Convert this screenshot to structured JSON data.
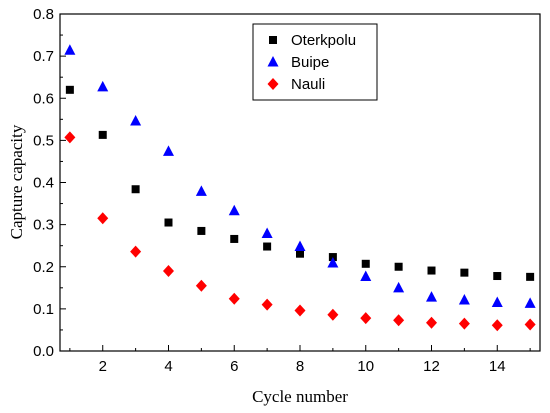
{
  "chart_data": {
    "type": "scatter",
    "title": "",
    "xlabel": "Cycle number",
    "ylabel": "Capture capacity",
    "xlim": [
      0.7,
      15.3
    ],
    "ylim": [
      0,
      0.8
    ],
    "xticks": [
      2,
      4,
      6,
      8,
      10,
      12,
      14
    ],
    "xtick_labels": [
      "2",
      "4",
      "6",
      "8",
      "10",
      "12",
      "14"
    ],
    "yticks": [
      0.0,
      0.1,
      0.2,
      0.3,
      0.4,
      0.5,
      0.6,
      0.7,
      0.8
    ],
    "ytick_labels": [
      "0.0",
      "0.1",
      "0.2",
      "0.3",
      "0.4",
      "0.5",
      "0.6",
      "0.7",
      "0.8"
    ],
    "grid": false,
    "legend_position": "top-center",
    "x": [
      1,
      2,
      3,
      4,
      5,
      6,
      7,
      8,
      9,
      10,
      11,
      12,
      13,
      14,
      15
    ],
    "series": [
      {
        "name": "Oterkpolu",
        "marker": "square",
        "color": "#000000",
        "values": [
          0.62,
          0.513,
          0.384,
          0.305,
          0.285,
          0.266,
          0.248,
          0.231,
          0.223,
          0.207,
          0.2,
          0.191,
          0.186,
          0.178,
          0.176
        ]
      },
      {
        "name": "Buipe",
        "marker": "triangle",
        "color": "#0000ff",
        "values": [
          0.714,
          0.627,
          0.546,
          0.474,
          0.379,
          0.333,
          0.279,
          0.248,
          0.209,
          0.177,
          0.15,
          0.128,
          0.121,
          0.115,
          0.113
        ]
      },
      {
        "name": "Nauli",
        "marker": "diamond",
        "color": "#ff0000",
        "values": [
          0.507,
          0.315,
          0.236,
          0.19,
          0.155,
          0.124,
          0.11,
          0.096,
          0.086,
          0.078,
          0.073,
          0.067,
          0.065,
          0.061,
          0.063
        ]
      }
    ]
  }
}
